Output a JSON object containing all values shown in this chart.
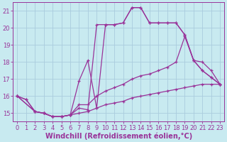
{
  "background_color": "#c8eaf0",
  "grid_color": "#aaccdd",
  "line_color": "#993399",
  "xlabel": "Windchill (Refroidissement éolien,°C)",
  "xlabel_fontsize": 7.0,
  "tick_fontsize": 6.0,
  "xlim": [
    -0.5,
    23.5
  ],
  "ylim": [
    14.5,
    21.5
  ],
  "yticks": [
    15,
    16,
    17,
    18,
    19,
    20,
    21
  ],
  "xticks": [
    0,
    1,
    2,
    3,
    4,
    5,
    6,
    7,
    8,
    9,
    10,
    11,
    12,
    13,
    14,
    15,
    16,
    17,
    18,
    19,
    20,
    21,
    22,
    23
  ],
  "series": [
    {
      "x": [
        0,
        1,
        2,
        3,
        4,
        5,
        6,
        7,
        8,
        9,
        10,
        11,
        12,
        13,
        14,
        15,
        16,
        17,
        18,
        19,
        20,
        21,
        22,
        23
      ],
      "y": [
        16.0,
        15.8,
        15.1,
        15.0,
        14.8,
        14.8,
        14.9,
        15.3,
        15.2,
        20.2,
        20.2,
        20.2,
        20.3,
        21.2,
        21.2,
        20.3,
        20.3,
        20.3,
        20.3,
        19.6,
        18.1,
        17.5,
        17.1,
        16.7
      ]
    },
    {
      "x": [
        0,
        1,
        2,
        3,
        4,
        5,
        6,
        7,
        8,
        9,
        10,
        11,
        12,
        13,
        14,
        15,
        16,
        17,
        18,
        19,
        20,
        21,
        22,
        23
      ],
      "y": [
        16.0,
        15.8,
        15.1,
        15.0,
        14.8,
        14.8,
        14.9,
        16.9,
        18.1,
        15.3,
        20.2,
        20.2,
        20.3,
        21.2,
        21.2,
        20.3,
        20.3,
        20.3,
        20.3,
        19.6,
        18.1,
        17.5,
        17.1,
        16.7
      ]
    },
    {
      "x": [
        0,
        2,
        3,
        4,
        5,
        6,
        7,
        8,
        9,
        10,
        11,
        12,
        13,
        14,
        15,
        16,
        17,
        18,
        19,
        20,
        21,
        22,
        23
      ],
      "y": [
        16.0,
        15.1,
        15.0,
        14.8,
        14.8,
        14.9,
        15.5,
        15.5,
        16.0,
        16.3,
        16.5,
        16.7,
        17.0,
        17.2,
        17.3,
        17.5,
        17.7,
        18.0,
        19.5,
        18.1,
        18.0,
        17.5,
        16.7
      ]
    },
    {
      "x": [
        0,
        2,
        3,
        4,
        5,
        6,
        7,
        8,
        9,
        10,
        11,
        12,
        13,
        14,
        15,
        16,
        17,
        18,
        19,
        20,
        21,
        22,
        23
      ],
      "y": [
        16.0,
        15.1,
        15.0,
        14.8,
        14.8,
        14.9,
        15.0,
        15.1,
        15.3,
        15.5,
        15.6,
        15.7,
        15.9,
        16.0,
        16.1,
        16.2,
        16.3,
        16.4,
        16.5,
        16.6,
        16.7,
        16.7,
        16.7
      ]
    }
  ]
}
